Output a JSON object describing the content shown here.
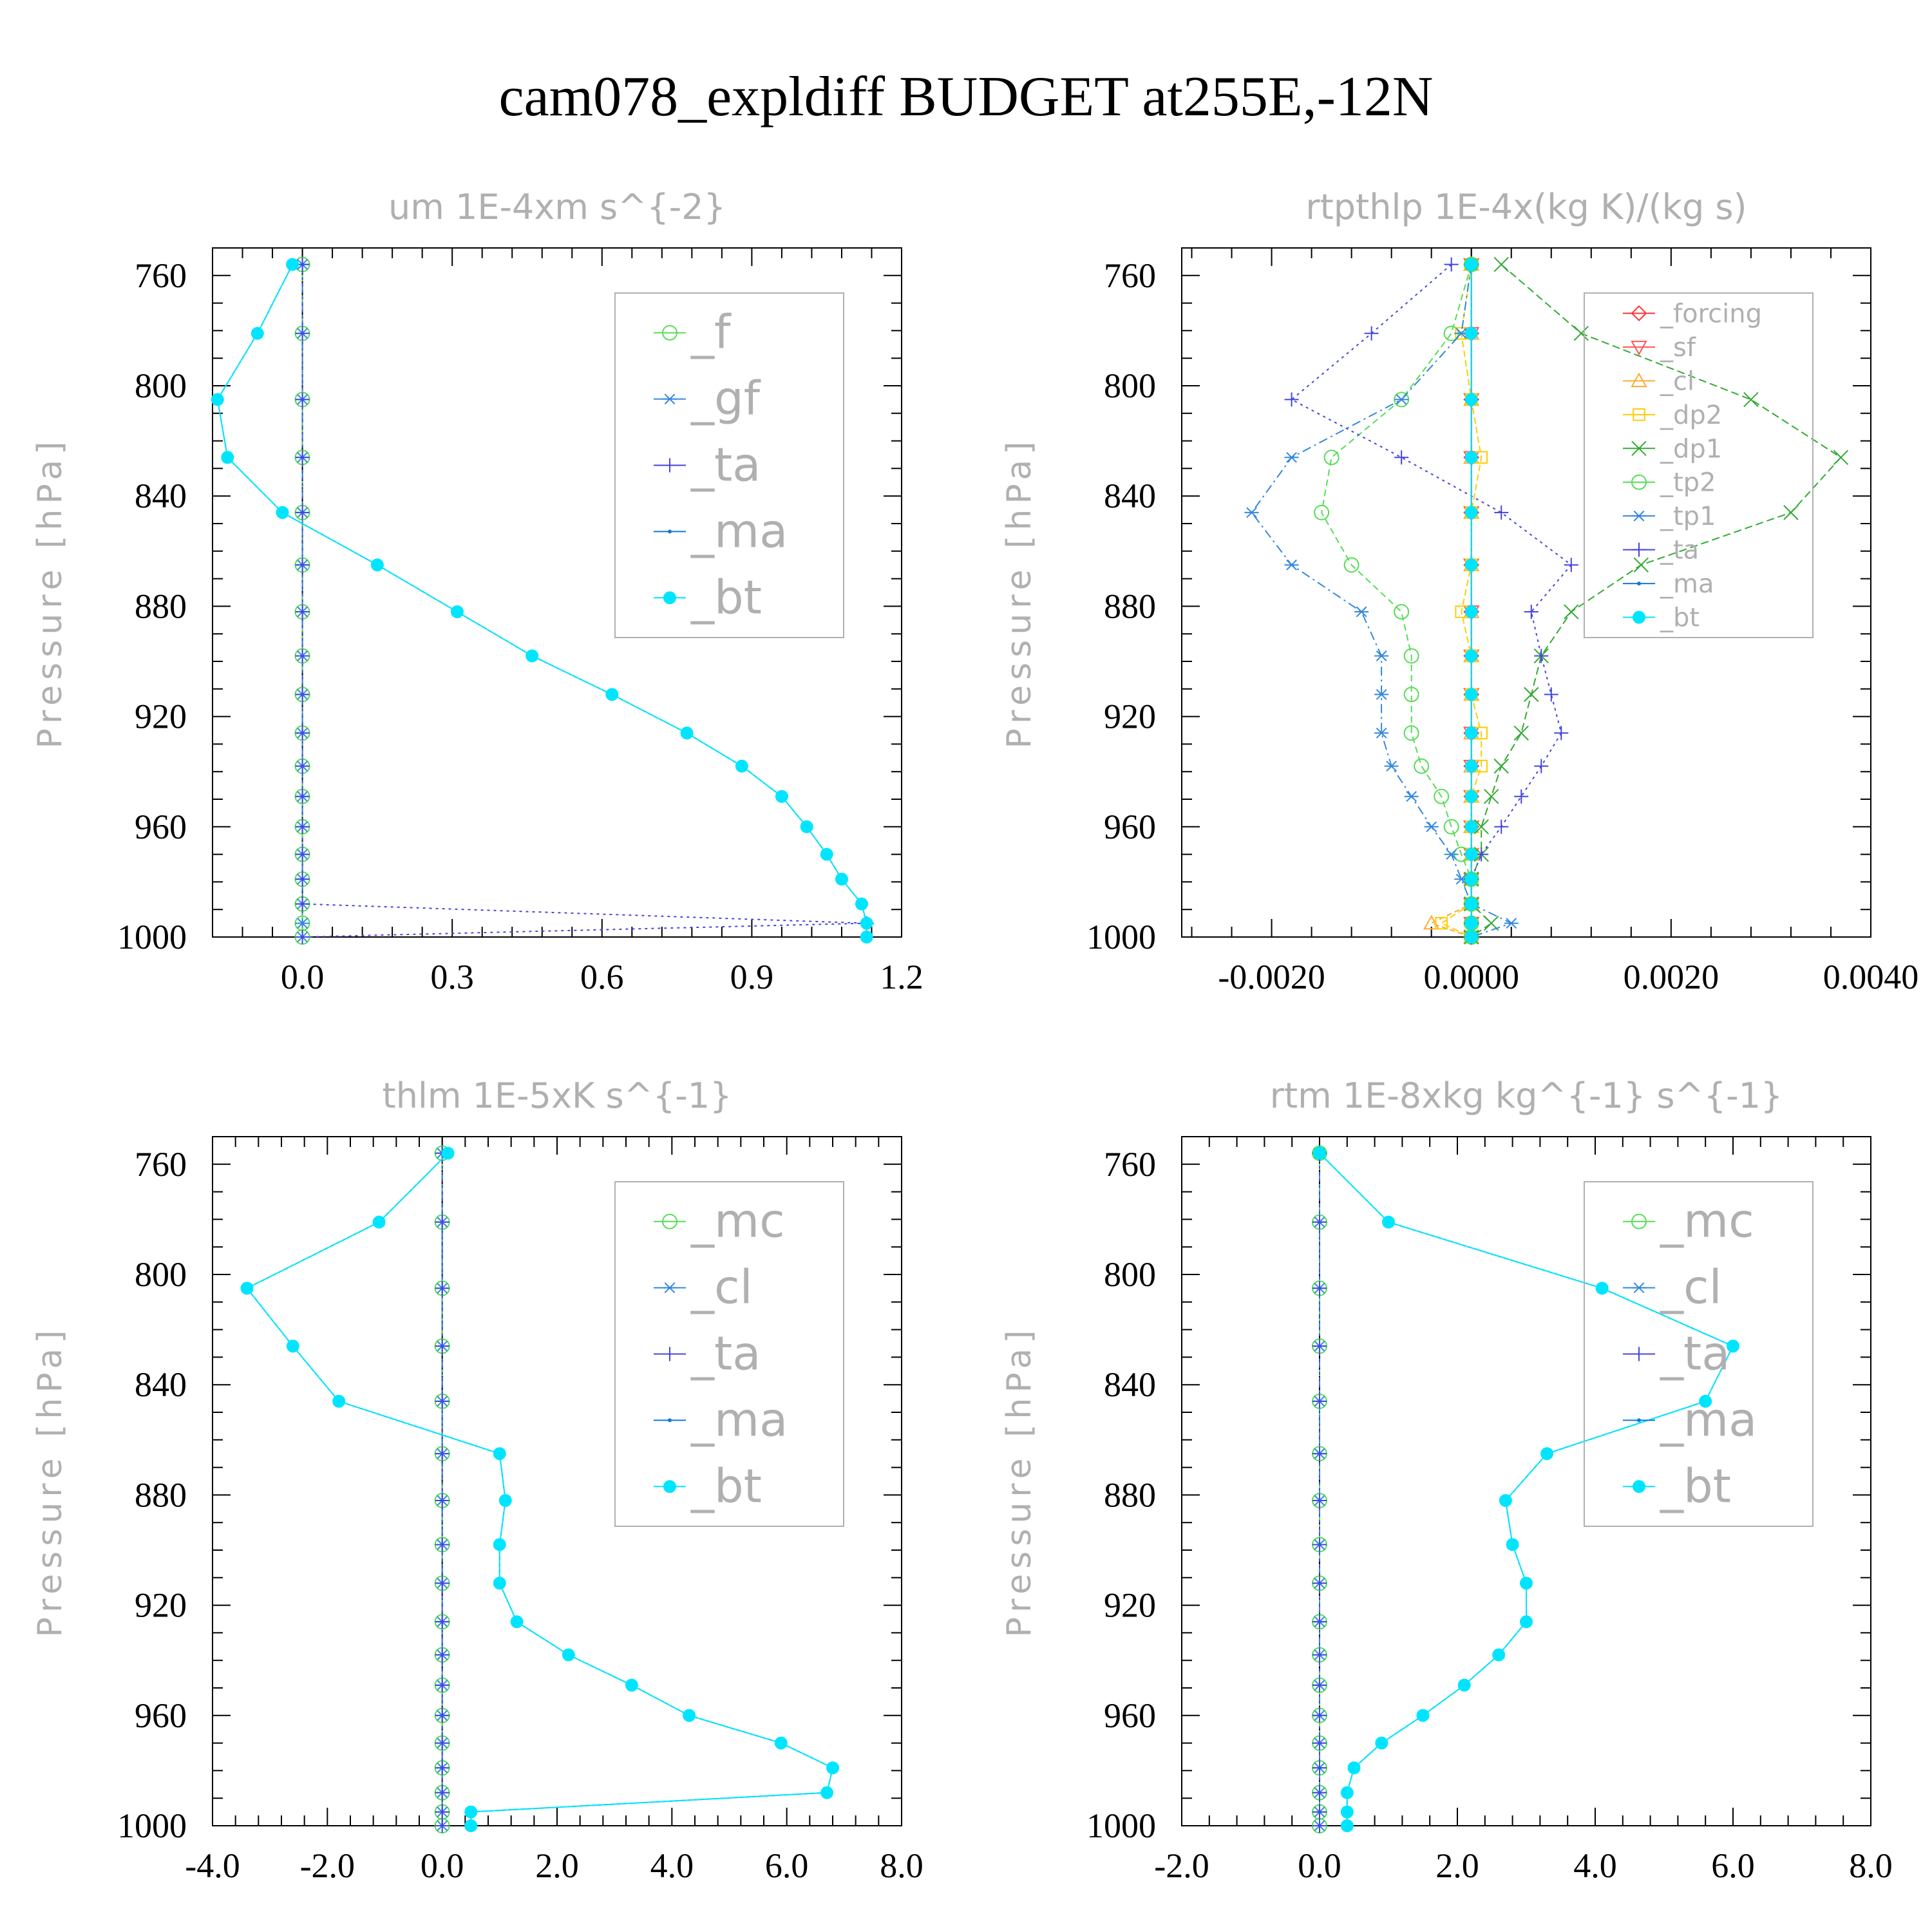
{
  "title": "cam078_expldiff  BUDGET at255E,-12N",
  "colors": {
    "axis": "#000000",
    "faded": "#b0b0b0",
    "f": "#55dd55",
    "gf": "#3388dd",
    "ta": "#4444dd",
    "ma": "#1177dd",
    "bt": "#00e5ff",
    "forcing": "#ff3333",
    "sf": "#ff5555",
    "cl": "#ffaa33",
    "dp2": "#ffcc00",
    "dp1": "#33aa33",
    "tp2": "#55dd55",
    "tp1": "#3388dd",
    "mc": "#55dd55"
  },
  "chart_data": [
    {
      "type": "line",
      "title": "um  1E-4xm s^{-2}",
      "ylabel": "Pressure [hPa]",
      "xlabel": "",
      "ylim": [
        750,
        1000
      ],
      "xlim": [
        -0.18,
        1.2
      ],
      "xticks": [
        "0.0",
        "0.3",
        "0.6",
        "0.9",
        "1.2"
      ],
      "xtick_values": [
        0.0,
        0.3,
        0.6,
        0.9,
        1.2
      ],
      "yticks": [
        "760",
        "800",
        "840",
        "880",
        "920",
        "960",
        "1000"
      ],
      "pressure": [
        756,
        781,
        805,
        826,
        846,
        865,
        882,
        898,
        912,
        926,
        938,
        949,
        960,
        970,
        979,
        988,
        995,
        1000
      ],
      "legend_location": "top-right",
      "series": [
        {
          "name": "_f",
          "key": "f",
          "marker": "circle",
          "values": [
            0,
            0,
            0,
            0,
            0,
            0,
            0,
            0,
            0,
            0,
            0,
            0,
            0,
            0,
            0,
            0,
            0,
            0
          ]
        },
        {
          "name": "_gf",
          "key": "gf",
          "marker": "star",
          "values": [
            0,
            0,
            0,
            0,
            0,
            0,
            0,
            0,
            0,
            0,
            0,
            0,
            0,
            0,
            0,
            0,
            0,
            0
          ]
        },
        {
          "name": "_ta",
          "key": "ta",
          "marker": "plus",
          "values": [
            0,
            0,
            0,
            0,
            0,
            0,
            0,
            0,
            0,
            0,
            0,
            0,
            0,
            0,
            0,
            0,
            1.13,
            0
          ]
        },
        {
          "name": "_ma",
          "key": "ma",
          "marker": "dot",
          "values": [
            -0.02,
            -0.09,
            -0.17,
            -0.15,
            -0.04,
            0.15,
            0.31,
            0.46,
            0.62,
            0.77,
            0.88,
            0.96,
            1.01,
            1.05,
            1.08,
            1.12,
            1.13,
            1.13
          ]
        },
        {
          "name": "_bt",
          "key": "bt",
          "marker": "disc",
          "values": [
            -0.02,
            -0.09,
            -0.17,
            -0.15,
            -0.04,
            0.15,
            0.31,
            0.46,
            0.62,
            0.77,
            0.88,
            0.96,
            1.01,
            1.05,
            1.08,
            1.12,
            1.13,
            1.13
          ]
        }
      ]
    },
    {
      "type": "line",
      "title": "rtpthlp  1E-4x(kg K)/(kg s)",
      "ylabel": "Pressure [hPa]",
      "xlabel": "",
      "ylim": [
        750,
        1000
      ],
      "xlim": [
        -0.0029,
        0.004
      ],
      "xticks": [
        "-0.0020",
        "0.0000",
        "0.0020",
        "0.0040"
      ],
      "xtick_values": [
        -0.002,
        0.0,
        0.002,
        0.004
      ],
      "yticks": [
        "760",
        "800",
        "840",
        "880",
        "920",
        "960",
        "1000"
      ],
      "pressure": [
        756,
        781,
        805,
        826,
        846,
        865,
        882,
        898,
        912,
        926,
        938,
        949,
        960,
        970,
        979,
        988,
        995,
        1000
      ],
      "legend_location": "top-right",
      "series": [
        {
          "name": "_forcing",
          "key": "forcing",
          "marker": "diamond",
          "values": [
            0,
            0,
            0,
            0,
            0,
            0,
            0,
            0,
            0,
            0,
            0,
            0,
            0,
            0,
            0,
            0,
            0,
            0
          ]
        },
        {
          "name": "_sf",
          "key": "sf",
          "marker": "tri-down",
          "values": [
            0,
            0,
            0,
            0,
            0,
            0,
            0,
            0,
            0,
            0,
            0,
            0,
            0,
            0,
            0,
            0,
            0,
            0
          ]
        },
        {
          "name": "_cl",
          "key": "cl",
          "marker": "tri-up",
          "values": [
            0,
            0,
            0,
            0,
            0,
            0,
            0,
            0,
            0,
            0,
            0,
            0,
            0,
            0,
            0,
            0,
            -0.0004,
            0
          ]
        },
        {
          "name": "_dp2",
          "key": "dp2",
          "marker": "square",
          "values": [
            0,
            -0.0001,
            0,
            0.0001,
            0,
            0,
            -0.0001,
            0,
            0,
            0.0001,
            0.0001,
            0,
            0,
            0,
            0,
            0,
            -0.0003,
            0
          ]
        },
        {
          "name": "_dp1",
          "key": "dp1",
          "marker": "x",
          "values": [
            0.0003,
            0.0011,
            0.0028,
            0.0037,
            0.0032,
            0.0017,
            0.001,
            0.0007,
            0.0006,
            0.0005,
            0.0003,
            0.0002,
            0.0001,
            0.0001,
            0,
            0,
            0.0002,
            0
          ]
        },
        {
          "name": "_tp2",
          "key": "tp2",
          "marker": "circle",
          "values": [
            0,
            -0.0002,
            -0.0007,
            -0.0014,
            -0.0015,
            -0.0012,
            -0.0007,
            -0.0006,
            -0.0006,
            -0.0006,
            -0.0005,
            -0.0003,
            -0.0002,
            -0.0001,
            0,
            0,
            0,
            0
          ]
        },
        {
          "name": "_tp1",
          "key": "tp1",
          "marker": "star",
          "values": [
            0,
            -0.0001,
            -0.0007,
            -0.0018,
            -0.0022,
            -0.0018,
            -0.0011,
            -0.0009,
            -0.0009,
            -0.0009,
            -0.0008,
            -0.0006,
            -0.0004,
            -0.0002,
            -0.0001,
            0,
            0.0004,
            0
          ]
        },
        {
          "name": "_ta",
          "key": "ta",
          "marker": "plus",
          "values": [
            -0.0002,
            -0.001,
            -0.0018,
            -0.0007,
            0.0003,
            0.001,
            0.0006,
            0.0007,
            0.0008,
            0.0009,
            0.0007,
            0.0005,
            0.0003,
            0.0001,
            0,
            0,
            0,
            0
          ]
        },
        {
          "name": "_ma",
          "key": "ma",
          "marker": "dot",
          "values": [
            0,
            0,
            0,
            0,
            0,
            0,
            0,
            0,
            0,
            0,
            0,
            0,
            0,
            0,
            0,
            0,
            0,
            0
          ]
        },
        {
          "name": "_bt",
          "key": "bt",
          "marker": "disc",
          "values": [
            0,
            0,
            0,
            0,
            0,
            0,
            0,
            0,
            0,
            0,
            0,
            0,
            0,
            0,
            0,
            0,
            0,
            0
          ]
        }
      ]
    },
    {
      "type": "line",
      "title": "thlm  1E-5xK s^{-1}",
      "ylabel": "Pressure [hPa]",
      "xlabel": "",
      "ylim": [
        750,
        1000
      ],
      "xlim": [
        -4.0,
        8.0
      ],
      "xticks": [
        "-4.0",
        "-2.0",
        "0.0",
        "2.0",
        "4.0",
        "6.0",
        "8.0"
      ],
      "xtick_values": [
        -4.0,
        -2.0,
        0.0,
        2.0,
        4.0,
        6.0,
        8.0
      ],
      "yticks": [
        "760",
        "800",
        "840",
        "880",
        "920",
        "960",
        "1000"
      ],
      "pressure": [
        756,
        781,
        805,
        826,
        846,
        865,
        882,
        898,
        912,
        926,
        938,
        949,
        960,
        970,
        979,
        988,
        995,
        1000
      ],
      "legend_location": "top-right",
      "series": [
        {
          "name": "_mc",
          "key": "mc",
          "marker": "circle",
          "values": [
            0,
            0,
            0,
            0,
            0,
            0,
            0,
            0,
            0,
            0,
            0,
            0,
            0,
            0,
            0,
            0,
            0,
            0
          ]
        },
        {
          "name": "_cl",
          "key": "gf",
          "marker": "star",
          "values": [
            0,
            0,
            0,
            0,
            0,
            0,
            0,
            0,
            0,
            0,
            0,
            0,
            0,
            0,
            0,
            0,
            0,
            0
          ]
        },
        {
          "name": "_ta",
          "key": "ta",
          "marker": "plus",
          "values": [
            0,
            0,
            0,
            0,
            0,
            0,
            0,
            0,
            0,
            0,
            0,
            0,
            0,
            0,
            0,
            0,
            0,
            0
          ]
        },
        {
          "name": "_ma",
          "key": "ma",
          "marker": "dot",
          "values": [
            0.1,
            -1.1,
            -3.4,
            -2.6,
            -1.8,
            1.0,
            1.1,
            1.0,
            1.0,
            1.3,
            2.2,
            3.3,
            4.3,
            5.9,
            6.8,
            6.7,
            0.5,
            0.5
          ]
        },
        {
          "name": "_bt",
          "key": "bt",
          "marker": "disc",
          "values": [
            0.1,
            -1.1,
            -3.4,
            -2.6,
            -1.8,
            1.0,
            1.1,
            1.0,
            1.0,
            1.3,
            2.2,
            3.3,
            4.3,
            5.9,
            6.8,
            6.7,
            0.5,
            0.5
          ]
        }
      ]
    },
    {
      "type": "line",
      "title": "rtm  1E-8xkg kg^{-1} s^{-1}",
      "ylabel": "Pressure [hPa]",
      "xlabel": "",
      "ylim": [
        750,
        1000
      ],
      "xlim": [
        -2.0,
        8.0
      ],
      "xticks": [
        "-2.0",
        "0.0",
        "2.0",
        "4.0",
        "6.0",
        "8.0"
      ],
      "xtick_values": [
        -2.0,
        0.0,
        2.0,
        4.0,
        6.0,
        8.0
      ],
      "yticks": [
        "760",
        "800",
        "840",
        "880",
        "920",
        "960",
        "1000"
      ],
      "pressure": [
        756,
        781,
        805,
        826,
        846,
        865,
        882,
        898,
        912,
        926,
        938,
        949,
        960,
        970,
        979,
        988,
        995,
        1000
      ],
      "legend_location": "top-right",
      "series": [
        {
          "name": "_mc",
          "key": "mc",
          "marker": "circle",
          "values": [
            0,
            0,
            0,
            0,
            0,
            0,
            0,
            0,
            0,
            0,
            0,
            0,
            0,
            0,
            0,
            0,
            0,
            0
          ]
        },
        {
          "name": "_cl",
          "key": "gf",
          "marker": "star",
          "values": [
            0,
            0,
            0,
            0,
            0,
            0,
            0,
            0,
            0,
            0,
            0,
            0,
            0,
            0,
            0,
            0,
            0,
            0
          ]
        },
        {
          "name": "_ta",
          "key": "ta",
          "marker": "plus",
          "values": [
            0,
            0,
            0,
            0,
            0,
            0,
            0,
            0,
            0,
            0,
            0,
            0,
            0,
            0,
            0,
            0,
            0,
            0
          ]
        },
        {
          "name": "_ma",
          "key": "ma",
          "marker": "dot",
          "values": [
            0,
            1.0,
            4.1,
            6.0,
            5.6,
            3.3,
            2.7,
            2.8,
            3.0,
            3.0,
            2.6,
            2.1,
            1.5,
            0.9,
            0.5,
            0.4,
            0.4,
            0.4
          ]
        },
        {
          "name": "_bt",
          "key": "bt",
          "marker": "disc",
          "values": [
            0,
            1.0,
            4.1,
            6.0,
            5.6,
            3.3,
            2.7,
            2.8,
            3.0,
            3.0,
            2.6,
            2.1,
            1.5,
            0.9,
            0.5,
            0.4,
            0.4,
            0.4
          ]
        }
      ]
    }
  ]
}
